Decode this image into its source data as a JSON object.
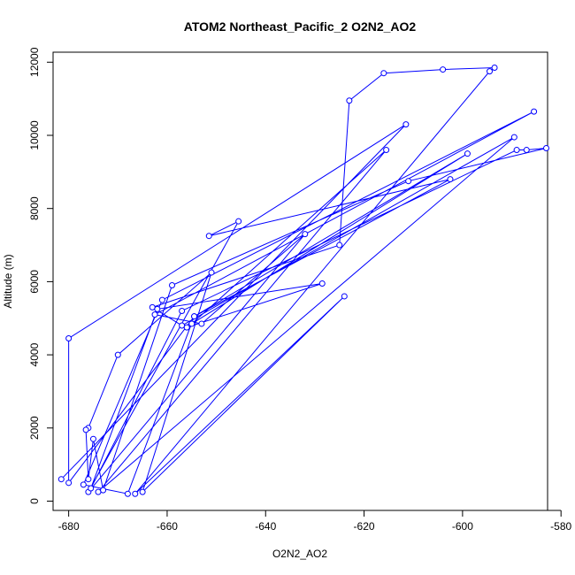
{
  "chart_data": {
    "type": "line",
    "title": "ATOM2 Northeast_Pacific_2 O2N2_AO2",
    "xlabel": "O2N2_AO2",
    "ylabel": "Altitude (m)",
    "xlim": [
      -682,
      -583
    ],
    "ylim": [
      0,
      11850
    ],
    "x_ticks": [
      -680,
      -660,
      -640,
      -620,
      -600,
      -580
    ],
    "y_ticks": [
      0,
      2000,
      4000,
      6000,
      8000,
      10000,
      12000
    ],
    "grid": false,
    "legend": "none",
    "colors": {
      "series": "#0000ff",
      "axis": "#000000"
    },
    "series": [
      {
        "points": [
          [
            -681.5,
            600
          ],
          [
            -611.5,
            10300
          ],
          [
            -680,
            4450
          ],
          [
            -680,
            500
          ],
          [
            -654.5,
            5050
          ],
          [
            -602.5,
            8800
          ],
          [
            -651.5,
            7250
          ],
          [
            -645.5,
            7650
          ],
          [
            -676,
            250
          ],
          [
            -632,
            7300
          ],
          [
            -653,
            4850
          ],
          [
            -662.5,
            5100
          ],
          [
            -585.5,
            10650
          ],
          [
            -661,
            5500
          ],
          [
            -677,
            450
          ],
          [
            -668,
            200
          ],
          [
            -654.5,
            5050
          ],
          [
            -599,
            9500
          ],
          [
            -655,
            4850
          ],
          [
            -615.5,
            9600
          ],
          [
            -674,
            250
          ],
          [
            -589.5,
            9950
          ],
          [
            -657,
            4800
          ],
          [
            -663,
            5300
          ],
          [
            -625,
            7000
          ],
          [
            -623,
            10950
          ],
          [
            -616,
            11700
          ],
          [
            -604,
            11800
          ],
          [
            -593.5,
            11850
          ],
          [
            -594.5,
            11750
          ],
          [
            -666.5,
            200
          ],
          [
            -624,
            5600
          ],
          [
            -665,
            250
          ],
          [
            -651,
            6250
          ],
          [
            -670,
            4000
          ],
          [
            -676,
            2000
          ],
          [
            -676.5,
            1950
          ],
          [
            -676,
            600
          ],
          [
            -675,
            1700
          ],
          [
            -673,
            300
          ],
          [
            -659,
            5900
          ],
          [
            -611,
            8750
          ],
          [
            -583,
            9650
          ],
          [
            -587,
            9600
          ],
          [
            -589,
            9600
          ],
          [
            -657,
            5200
          ],
          [
            -675.5,
            350
          ],
          [
            -662,
            5250
          ],
          [
            -628.5,
            5950
          ],
          [
            -656,
            4750
          ]
        ]
      }
    ]
  }
}
